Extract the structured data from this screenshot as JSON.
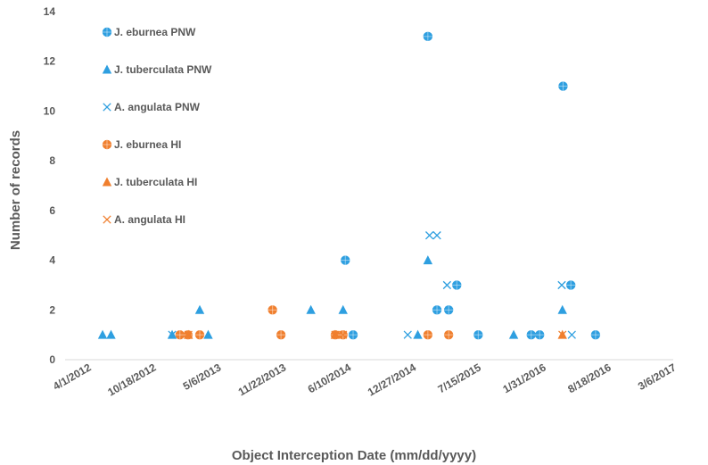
{
  "chart_data": {
    "type": "scatter",
    "title": "",
    "xlabel": "Object Interception Date (mm/dd/yyyy)",
    "ylabel": "Number of records",
    "x_axis": {
      "type": "date",
      "min": "4/1/2012",
      "max": "3/6/2017",
      "tick_labels": [
        "4/1/2012",
        "10/18/2012",
        "5/6/2013",
        "11/22/2013",
        "6/10/2014",
        "12/27/2014",
        "7/15/2015",
        "1/31/2016",
        "8/18/2016",
        "3/6/2017"
      ]
    },
    "y_axis": {
      "min": 0,
      "max": 14,
      "ticks": [
        0,
        2,
        4,
        6,
        8,
        10,
        12,
        14
      ]
    },
    "grid": false,
    "legend_position": "top-left",
    "colors": {
      "PNW": "#2E9FE0",
      "HI": "#F07F2E"
    },
    "series": [
      {
        "name": "J. eburnea PNW",
        "marker": "circle-plus",
        "color": "#2E9FE0",
        "points": [
          {
            "x": "6/1/2014",
            "y": 4
          },
          {
            "x": "6/25/2014",
            "y": 1
          },
          {
            "x": "2/10/2015",
            "y": 13
          },
          {
            "x": "3/10/2015",
            "y": 2
          },
          {
            "x": "4/15/2015",
            "y": 2
          },
          {
            "x": "5/10/2015",
            "y": 3
          },
          {
            "x": "7/15/2015",
            "y": 1
          },
          {
            "x": "12/25/2015",
            "y": 1
          },
          {
            "x": "1/20/2016",
            "y": 1
          },
          {
            "x": "4/1/2016",
            "y": 11
          },
          {
            "x": "4/25/2016",
            "y": 3
          },
          {
            "x": "7/10/2016",
            "y": 1
          }
        ]
      },
      {
        "name": "J. tuberculata PNW",
        "marker": "triangle",
        "color": "#2E9FE0",
        "points": [
          {
            "x": "5/15/2012",
            "y": 1
          },
          {
            "x": "6/10/2012",
            "y": 1
          },
          {
            "x": "12/15/2012",
            "y": 1
          },
          {
            "x": "3/10/2013",
            "y": 2
          },
          {
            "x": "4/5/2013",
            "y": 1
          },
          {
            "x": "2/15/2014",
            "y": 2
          },
          {
            "x": "5/25/2014",
            "y": 2
          },
          {
            "x": "1/10/2015",
            "y": 1
          },
          {
            "x": "2/10/2015",
            "y": 4
          },
          {
            "x": "11/1/2015",
            "y": 1
          },
          {
            "x": "3/30/2016",
            "y": 2
          }
        ]
      },
      {
        "name": "A. angulata PNW",
        "marker": "x",
        "color": "#2E9FE0",
        "points": [
          {
            "x": "12/15/2012",
            "y": 1
          },
          {
            "x": "12/10/2014",
            "y": 1
          },
          {
            "x": "2/15/2015",
            "y": 5
          },
          {
            "x": "3/10/2015",
            "y": 5
          },
          {
            "x": "4/10/2015",
            "y": 3
          },
          {
            "x": "3/28/2016",
            "y": 3
          },
          {
            "x": "4/28/2016",
            "y": 1
          }
        ]
      },
      {
        "name": "J. eburnea HI",
        "marker": "circle-plus",
        "color": "#F07F2E",
        "points": [
          {
            "x": "1/8/2013",
            "y": 1
          },
          {
            "x": "2/2/2013",
            "y": 1
          },
          {
            "x": "3/10/2013",
            "y": 1
          },
          {
            "x": "10/20/2013",
            "y": 2
          },
          {
            "x": "11/15/2013",
            "y": 1
          },
          {
            "x": "5/1/2014",
            "y": 1
          },
          {
            "x": "5/25/2014",
            "y": 1
          },
          {
            "x": "2/10/2015",
            "y": 1
          },
          {
            "x": "4/15/2015",
            "y": 1
          }
        ]
      },
      {
        "name": "J. tuberculata HI",
        "marker": "triangle",
        "color": "#F07F2E",
        "points": [
          {
            "x": "2/3/2013",
            "y": 1
          },
          {
            "x": "5/1/2014",
            "y": 1
          },
          {
            "x": "3/30/2016",
            "y": 1
          }
        ]
      },
      {
        "name": "A. angulata HI",
        "marker": "x",
        "color": "#F07F2E",
        "points": [
          {
            "x": "2/3/2013",
            "y": 1
          },
          {
            "x": "5/1/2014",
            "y": 1
          },
          {
            "x": "5/25/2014",
            "y": 1
          },
          {
            "x": "3/30/2016",
            "y": 1
          }
        ]
      }
    ]
  }
}
